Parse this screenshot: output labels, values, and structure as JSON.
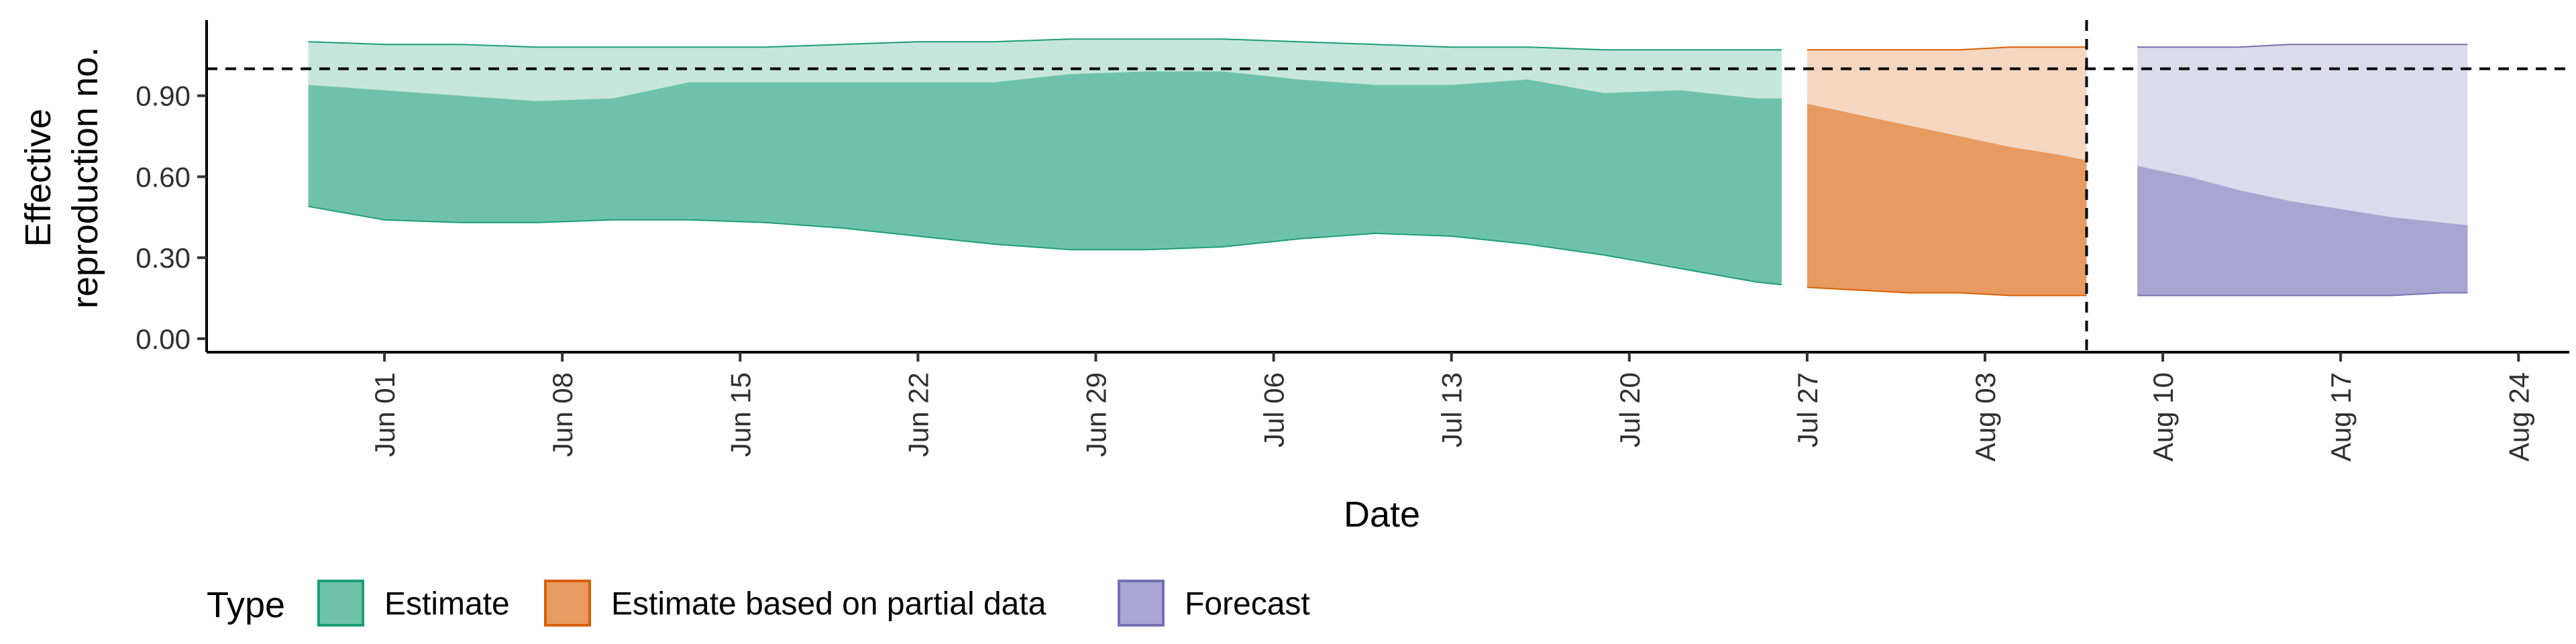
{
  "chart_data": {
    "type": "area",
    "title": "",
    "xlabel": "Date",
    "ylabel_lines": [
      "Effective",
      "reproduction no."
    ],
    "x_axis": {
      "type": "date",
      "range": [
        "2021-05-25",
        "2021-08-26"
      ],
      "ticks": [
        {
          "date": "2021-06-01",
          "label": "Jun 01"
        },
        {
          "date": "2021-06-08",
          "label": "Jun 08"
        },
        {
          "date": "2021-06-15",
          "label": "Jun 15"
        },
        {
          "date": "2021-06-22",
          "label": "Jun 22"
        },
        {
          "date": "2021-06-29",
          "label": "Jun 29"
        },
        {
          "date": "2021-07-06",
          "label": "Jul 06"
        },
        {
          "date": "2021-07-13",
          "label": "Jul 13"
        },
        {
          "date": "2021-07-20",
          "label": "Jul 20"
        },
        {
          "date": "2021-07-27",
          "label": "Jul 27"
        },
        {
          "date": "2021-08-03",
          "label": "Aug 03"
        },
        {
          "date": "2021-08-10",
          "label": "Aug 10"
        },
        {
          "date": "2021-08-17",
          "label": "Aug 17"
        },
        {
          "date": "2021-08-24",
          "label": "Aug 24"
        }
      ]
    },
    "y_axis": {
      "range": [
        -0.05,
        1.18
      ],
      "ticks": [
        {
          "value": 0.0,
          "label": "0.00"
        },
        {
          "value": 0.3,
          "label": "0.30"
        },
        {
          "value": 0.6,
          "label": "0.60"
        },
        {
          "value": 0.9,
          "label": "0.90"
        }
      ]
    },
    "reference_line": {
      "y": 1.0,
      "style": "dashed"
    },
    "vertical_reference_line": {
      "date": "2021-08-07",
      "style": "dashed"
    },
    "grid": false,
    "legend": {
      "title": "Type",
      "placement": "bottom-left",
      "entries": [
        {
          "label": "Estimate",
          "series": "estimate"
        },
        {
          "label": "Estimate based on partial data",
          "series": "partial"
        },
        {
          "label": "Forecast",
          "series": "forecast"
        }
      ]
    },
    "series": [
      {
        "key": "estimate",
        "color": "#1B9E77",
        "fill": "#6FC2AA",
        "fill_light": "#C6E6DC",
        "x": [
          "2021-05-29",
          "2021-06-01",
          "2021-06-04",
          "2021-06-07",
          "2021-06-10",
          "2021-06-13",
          "2021-06-16",
          "2021-06-19",
          "2021-06-22",
          "2021-06-25",
          "2021-06-28",
          "2021-07-01",
          "2021-07-04",
          "2021-07-07",
          "2021-07-10",
          "2021-07-13",
          "2021-07-16",
          "2021-07-19",
          "2021-07-22",
          "2021-07-25",
          "2021-07-26"
        ],
        "lower_90": [
          0.49,
          0.44,
          0.43,
          0.43,
          0.44,
          0.44,
          0.43,
          0.41,
          0.38,
          0.35,
          0.33,
          0.33,
          0.34,
          0.37,
          0.39,
          0.38,
          0.35,
          0.31,
          0.26,
          0.21,
          0.2
        ],
        "upper_50": [
          0.94,
          0.92,
          0.9,
          0.88,
          0.89,
          0.95,
          0.95,
          0.95,
          0.95,
          0.95,
          0.98,
          0.99,
          0.99,
          0.96,
          0.94,
          0.94,
          0.96,
          0.91,
          0.92,
          0.89,
          0.89
        ],
        "upper_90": [
          1.1,
          1.09,
          1.09,
          1.08,
          1.08,
          1.08,
          1.08,
          1.09,
          1.1,
          1.1,
          1.11,
          1.11,
          1.11,
          1.1,
          1.09,
          1.08,
          1.08,
          1.07,
          1.07,
          1.07,
          1.07
        ]
      },
      {
        "key": "partial",
        "color": "#D95F02",
        "fill": "#E89B61",
        "fill_light": "#F5D7C1",
        "x": [
          "2021-07-27",
          "2021-07-29",
          "2021-07-31",
          "2021-08-02",
          "2021-08-04",
          "2021-08-06",
          "2021-08-07"
        ],
        "lower_90": [
          0.19,
          0.18,
          0.17,
          0.17,
          0.16,
          0.16,
          0.16
        ],
        "upper_50": [
          0.87,
          0.83,
          0.79,
          0.75,
          0.71,
          0.68,
          0.66
        ],
        "upper_90": [
          1.07,
          1.07,
          1.07,
          1.07,
          1.08,
          1.08,
          1.08
        ]
      },
      {
        "key": "forecast",
        "color": "#7570B3",
        "fill": "#A9A5D3",
        "fill_light": "#DCDBEB",
        "x": [
          "2021-08-09",
          "2021-08-11",
          "2021-08-13",
          "2021-08-15",
          "2021-08-17",
          "2021-08-19",
          "2021-08-21",
          "2021-08-22"
        ],
        "lower_90": [
          0.16,
          0.16,
          0.16,
          0.16,
          0.16,
          0.16,
          0.17,
          0.17
        ],
        "upper_50": [
          0.64,
          0.6,
          0.55,
          0.51,
          0.48,
          0.45,
          0.43,
          0.42
        ],
        "upper_90": [
          1.08,
          1.08,
          1.08,
          1.09,
          1.09,
          1.09,
          1.09,
          1.09
        ]
      }
    ]
  }
}
